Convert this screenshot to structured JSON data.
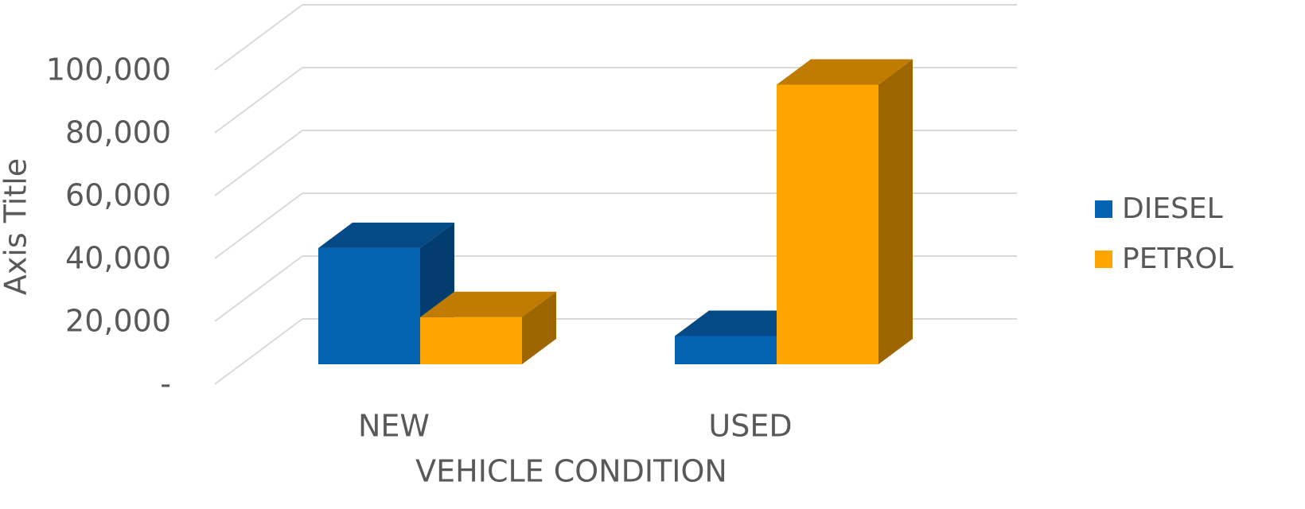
{
  "chart_data": {
    "type": "bar3d",
    "y_axis_title": "Axis Title",
    "x_axis_title": "VEHICLE CONDITION",
    "categories": [
      "NEW",
      "USED"
    ],
    "series": [
      {
        "name": "DIESEL",
        "color": "#0563b4",
        "values": [
          37000,
          9000
        ]
      },
      {
        "name": "PETROL",
        "color": "#ffa500",
        "values": [
          15000,
          89000
        ]
      }
    ],
    "ylim": [
      0,
      100000
    ],
    "yticks": [
      {
        "value": 0,
        "label": "-"
      },
      {
        "value": 20000,
        "label": "20,000"
      },
      {
        "value": 40000,
        "label": "40,000"
      },
      {
        "value": 60000,
        "label": "60,000"
      },
      {
        "value": 80000,
        "label": "80,000"
      },
      {
        "value": 100000,
        "label": "100,000"
      }
    ],
    "grid": true,
    "legend": "right"
  }
}
